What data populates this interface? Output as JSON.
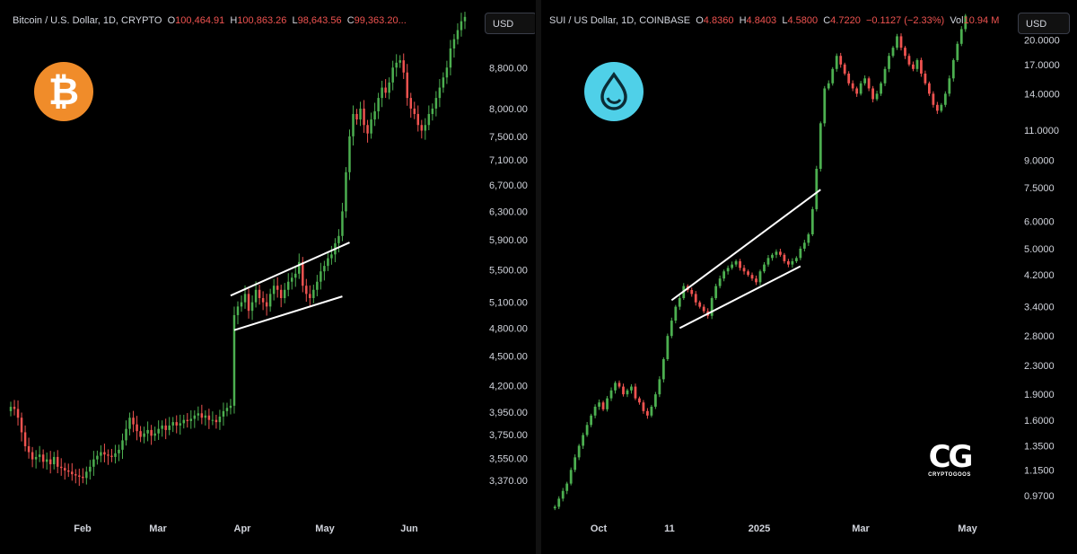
{
  "colors": {
    "up": "#4caf50",
    "down": "#ef5350",
    "background": "#000000",
    "text": "#d1d4dc",
    "channel": "#ffffff",
    "btc_logo": "#f08c2a",
    "sui_logo": "#4fd0e8"
  },
  "icons": {
    "left_logo": "bitcoin-logo-icon",
    "right_logo": "sui-logo-icon",
    "watermark": "cryptogoos-logo-icon"
  },
  "left": {
    "legend": {
      "symbol": "Bitcoin / U.S. Dollar, 1D, CRYPTO",
      "o_label": "O",
      "o_value": "100,464.91",
      "h_label": "H",
      "h_value": "100,863.26",
      "l_label": "L",
      "l_value": "98,643.56",
      "c_label": "C",
      "c_value": "99,363.20..."
    },
    "currency": "USD"
  },
  "right": {
    "legend": {
      "symbol": "SUI / US Dollar, 1D, COINBASE",
      "o_label": "O",
      "o_value": "4.8360",
      "h_label": "H",
      "h_value": "4.8403",
      "l_label": "L",
      "l_value": "4.5800",
      "c_label": "C",
      "c_value": "4.7220",
      "change": "−0.1127 (−2.33%)",
      "vol_label": "Vol",
      "vol_value": "10.94 M"
    },
    "currency": "USD",
    "watermark": {
      "letters": "CG",
      "text": "CRYPTOGOOS"
    }
  },
  "chart_data": [
    {
      "type": "candlestick",
      "title": "Bitcoin / U.S. Dollar, 1D, CRYPTO",
      "y_scale": "log",
      "ylim": [
        3200,
        10000
      ],
      "y_ticks": [
        "8,800.00",
        "8,000.00",
        "7,500.00",
        "7,100.00",
        "6,700.00",
        "6,300.00",
        "5,900.00",
        "5,500.00",
        "5,100.00",
        "4,800.00",
        "4,500.00",
        "4,200.00",
        "3,950.00",
        "3,750.00",
        "3,550.00",
        "3,370.00"
      ],
      "x_ticks": [
        "Feb",
        "Mar",
        "Apr",
        "May",
        "Jun"
      ],
      "closes": [
        4000,
        3980,
        3900,
        3770,
        3650,
        3600,
        3540,
        3560,
        3580,
        3520,
        3540,
        3500,
        3560,
        3480,
        3470,
        3450,
        3440,
        3420,
        3410,
        3400,
        3390,
        3440,
        3480,
        3540,
        3570,
        3600,
        3580,
        3570,
        3560,
        3590,
        3620,
        3700,
        3800,
        3900,
        3840,
        3780,
        3730,
        3760,
        3790,
        3740,
        3760,
        3800,
        3830,
        3790,
        3830,
        3860,
        3830,
        3850,
        3880,
        3870,
        3890,
        3920,
        3940,
        3900,
        3920,
        3880,
        3880,
        3860,
        3910,
        3960,
        3990,
        4010,
        4950,
        5050,
        5100,
        5200,
        5000,
        5100,
        5250,
        5150,
        5100,
        5050,
        5200,
        5300,
        5250,
        5150,
        5250,
        5350,
        5400,
        5450,
        5600,
        5300,
        5200,
        5150,
        5250,
        5350,
        5480,
        5550,
        5650,
        5700,
        5850,
        5950,
        6300,
        6900,
        7500,
        7900,
        7800,
        8000,
        7700,
        7550,
        7800,
        7950,
        8200,
        8400,
        8300,
        8500,
        8800,
        8900,
        8950,
        8700,
        8200,
        8000,
        7900,
        7700,
        7600,
        7700,
        7900,
        8000,
        8200,
        8400,
        8600,
        8800,
        9200,
        9400,
        9600,
        9800,
        9900
      ],
      "channel": [
        {
          "name": "upper",
          "from": {
            "bar": 61,
            "value": 5180
          },
          "to": {
            "bar": 94,
            "value": 5860
          }
        },
        {
          "name": "lower",
          "from": {
            "bar": 62,
            "value": 4780
          },
          "to": {
            "bar": 92,
            "value": 5170
          }
        }
      ]
    },
    {
      "type": "candlestick",
      "title": "SUI / US Dollar, 1D, COINBASE",
      "y_scale": "log",
      "ylim": [
        0.85,
        24
      ],
      "y_ticks": [
        "20.0000",
        "17.0000",
        "14.0000",
        "11.0000",
        "9.0000",
        "7.5000",
        "6.0000",
        "5.0000",
        "4.2000",
        "3.4000",
        "2.8000",
        "2.3000",
        "1.9000",
        "1.6000",
        "1.3500",
        "1.1500",
        "0.9700"
      ],
      "x_ticks": [
        "Oct",
        "11",
        "2025",
        "Mar",
        "May"
      ],
      "closes": [
        0.9,
        0.95,
        1.0,
        1.05,
        1.15,
        1.25,
        1.35,
        1.45,
        1.55,
        1.65,
        1.75,
        1.8,
        1.72,
        1.85,
        1.95,
        2.05,
        2.0,
        1.9,
        1.95,
        2.0,
        1.85,
        1.8,
        1.7,
        1.65,
        1.75,
        1.9,
        2.1,
        2.4,
        2.8,
        3.1,
        3.4,
        3.6,
        3.9,
        3.8,
        3.7,
        3.5,
        3.4,
        3.3,
        3.2,
        3.6,
        3.9,
        4.1,
        4.3,
        4.4,
        4.5,
        4.6,
        4.4,
        4.3,
        4.2,
        4.1,
        4.0,
        4.3,
        4.5,
        4.7,
        4.8,
        4.9,
        4.8,
        4.6,
        4.5,
        4.6,
        4.7,
        5.0,
        5.2,
        5.5,
        6.5,
        8.5,
        11.5,
        14.5,
        15.0,
        16.5,
        18.0,
        17.0,
        16.0,
        15.0,
        14.5,
        14.0,
        15.0,
        15.5,
        14.5,
        13.5,
        14.0,
        15.0,
        16.5,
        18.0,
        19.0,
        20.5,
        19.0,
        18.0,
        17.0,
        16.5,
        17.5,
        16.0,
        15.0,
        14.0,
        13.0,
        12.5,
        13.0,
        14.0,
        15.5,
        17.5,
        19.5,
        21.5,
        23.5
      ],
      "channel": [
        {
          "name": "upper",
          "from": {
            "bar": 29,
            "value": 3.55
          },
          "to": {
            "bar": 66,
            "value": 7.4
          }
        },
        {
          "name": "lower",
          "from": {
            "bar": 31,
            "value": 2.95
          },
          "to": {
            "bar": 61,
            "value": 4.45
          }
        }
      ]
    }
  ]
}
